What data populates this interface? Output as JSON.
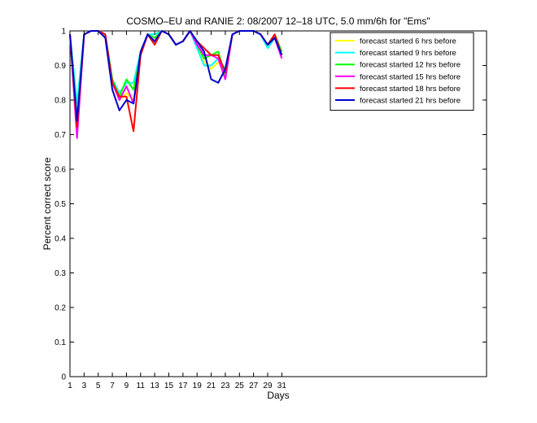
{
  "chart_data": {
    "type": "line",
    "title": "COSMO–EU and RANIE 2: 08/2007 12–18 UTC, 5.0 mm/6h for \"Ems\"",
    "xlabel": "Days",
    "ylabel": "Percent correct score",
    "xlim": [
      1,
      60
    ],
    "ylim": [
      0,
      1
    ],
    "xticks": [
      1,
      3,
      5,
      7,
      9,
      11,
      13,
      15,
      17,
      19,
      21,
      23,
      25,
      27,
      29,
      31
    ],
    "yticks": [
      0,
      0.1,
      0.2,
      0.3,
      0.4,
      0.5,
      0.6,
      0.7,
      0.8,
      0.9,
      1
    ],
    "ytick_labels": [
      "0",
      "0.1",
      "0.2",
      "0.3",
      "0.4",
      "0.5",
      "0.6",
      "0.7",
      "0.8",
      "0.9",
      "1"
    ],
    "grid": false,
    "legend_position": "top-right",
    "x": [
      1,
      2,
      3,
      4,
      5,
      6,
      7,
      8,
      9,
      10,
      11,
      12,
      13,
      14,
      15,
      16,
      17,
      18,
      19,
      20,
      21,
      22,
      23,
      24,
      25,
      26,
      27,
      28,
      29,
      30,
      31
    ],
    "series": [
      {
        "name": "forecast started 6 hrs before",
        "color": "#ffff00",
        "values": [
          0.99,
          0.74,
          0.99,
          1.0,
          1.0,
          0.99,
          0.86,
          0.8,
          0.82,
          0.8,
          0.93,
          0.99,
          0.98,
          1.0,
          0.99,
          0.96,
          0.97,
          1.0,
          0.96,
          0.91,
          0.89,
          0.91,
          0.88,
          0.99,
          1.0,
          1.0,
          1.0,
          0.99,
          0.95,
          0.99,
          0.93
        ]
      },
      {
        "name": "forecast started 9 hrs before",
        "color": "#00ffff",
        "values": [
          0.99,
          0.79,
          0.99,
          1.0,
          1.0,
          0.99,
          0.86,
          0.82,
          0.85,
          0.85,
          0.94,
          0.99,
          0.99,
          1.0,
          0.99,
          0.96,
          0.97,
          1.0,
          0.95,
          0.9,
          0.9,
          0.92,
          0.89,
          0.99,
          1.0,
          1.0,
          1.0,
          0.99,
          0.95,
          0.98,
          0.94
        ]
      },
      {
        "name": "forecast started 12 hrs before",
        "color": "#00ff00",
        "values": [
          0.99,
          0.75,
          0.99,
          1.0,
          1.0,
          0.99,
          0.86,
          0.81,
          0.86,
          0.83,
          0.93,
          0.99,
          0.98,
          1.0,
          0.99,
          0.96,
          0.97,
          1.0,
          0.96,
          0.92,
          0.93,
          0.94,
          0.87,
          0.99,
          1.0,
          1.0,
          1.0,
          0.99,
          0.96,
          0.99,
          0.94
        ]
      },
      {
        "name": "forecast started 15 hrs before",
        "color": "#ff00ff",
        "values": [
          0.99,
          0.69,
          0.99,
          1.0,
          1.0,
          0.99,
          0.85,
          0.8,
          0.84,
          0.79,
          0.93,
          0.99,
          0.97,
          1.0,
          0.99,
          0.96,
          0.97,
          1.0,
          0.96,
          0.93,
          0.93,
          0.92,
          0.86,
          0.99,
          1.0,
          1.0,
          1.0,
          0.99,
          0.96,
          0.98,
          0.92
        ]
      },
      {
        "name": "forecast started 18 hrs before",
        "color": "#ff0000",
        "values": [
          0.99,
          0.72,
          0.99,
          1.0,
          1.0,
          0.99,
          0.85,
          0.81,
          0.81,
          0.71,
          0.93,
          0.99,
          0.96,
          1.0,
          0.99,
          0.96,
          0.97,
          1.0,
          0.97,
          0.95,
          0.93,
          0.93,
          0.88,
          0.99,
          1.0,
          1.0,
          1.0,
          0.99,
          0.96,
          0.99,
          0.93
        ]
      },
      {
        "name": "forecast started 21 hrs before",
        "color": "#0000cc",
        "values": [
          0.99,
          0.74,
          0.99,
          1.0,
          1.0,
          0.98,
          0.83,
          0.77,
          0.8,
          0.79,
          0.94,
          0.99,
          0.97,
          1.0,
          0.99,
          0.96,
          0.97,
          1.0,
          0.97,
          0.94,
          0.86,
          0.85,
          0.89,
          0.99,
          1.0,
          1.0,
          1.0,
          0.99,
          0.96,
          0.98,
          0.93
        ]
      }
    ]
  }
}
